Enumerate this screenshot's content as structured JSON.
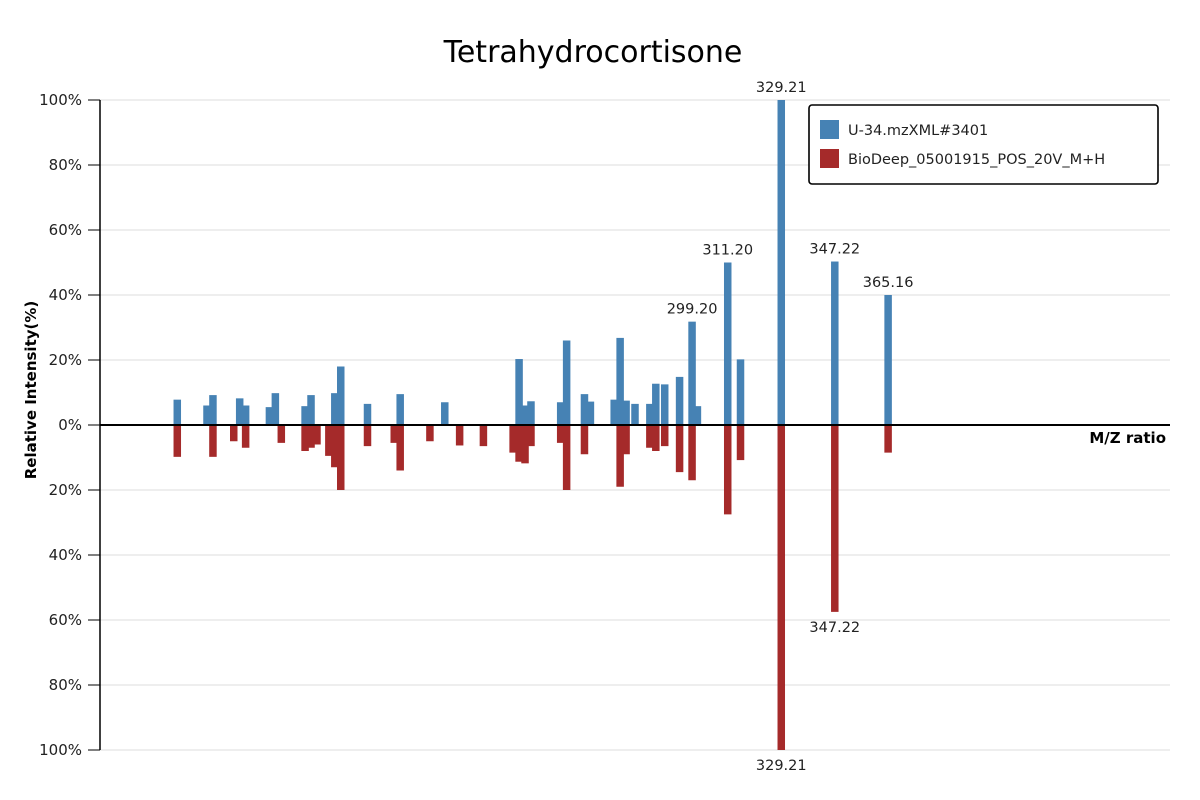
{
  "chart_data": {
    "type": "bar",
    "title": "Tetrahydrocortisone",
    "xlabel": "M/Z ratio",
    "ylabel": "Relative Intensity(%)",
    "y_ticks_top": [
      "100%",
      "80%",
      "60%",
      "40%",
      "20%",
      "0%"
    ],
    "y_ticks_bottom": [
      "20%",
      "40%",
      "60%",
      "80%",
      "100%"
    ],
    "ylim": [
      -100,
      100
    ],
    "xlim": [
      100,
      460
    ],
    "grid": true,
    "legend_position": "top-right",
    "series": [
      {
        "name": "U-34.mzXML#3401",
        "color": "#4682b4",
        "peaks": [
          {
            "mz": 126,
            "value": 7.8
          },
          {
            "mz": 136,
            "value": 6
          },
          {
            "mz": 138,
            "value": 9.2
          },
          {
            "mz": 147,
            "value": 8.2
          },
          {
            "mz": 149,
            "value": 6
          },
          {
            "mz": 157,
            "value": 5.5
          },
          {
            "mz": 159,
            "value": 9.8
          },
          {
            "mz": 169,
            "value": 5.8
          },
          {
            "mz": 171,
            "value": 9.2
          },
          {
            "mz": 179,
            "value": 9.8
          },
          {
            "mz": 181,
            "value": 18
          },
          {
            "mz": 190,
            "value": 6.5
          },
          {
            "mz": 201,
            "value": 9.5
          },
          {
            "mz": 216,
            "value": 7
          },
          {
            "mz": 241,
            "value": 20.3
          },
          {
            "mz": 243,
            "value": 6
          },
          {
            "mz": 245,
            "value": 7.3
          },
          {
            "mz": 255,
            "value": 7
          },
          {
            "mz": 257,
            "value": 26
          },
          {
            "mz": 263,
            "value": 9.5
          },
          {
            "mz": 265,
            "value": 7.2
          },
          {
            "mz": 273,
            "value": 7.8
          },
          {
            "mz": 275,
            "value": 26.8
          },
          {
            "mz": 277,
            "value": 7.5
          },
          {
            "mz": 280,
            "value": 6.5
          },
          {
            "mz": 285,
            "value": 6.5
          },
          {
            "mz": 287,
            "value": 12.7
          },
          {
            "mz": 290,
            "value": 12.5
          },
          {
            "mz": 295,
            "value": 14.8
          },
          {
            "mz": 299.2,
            "value": 31.8,
            "label": "299.20"
          },
          {
            "mz": 301,
            "value": 5.8
          },
          {
            "mz": 311.2,
            "value": 50,
            "label": "311.20"
          },
          {
            "mz": 315.5,
            "value": 20.2
          },
          {
            "mz": 329.21,
            "value": 100,
            "label": "329.21"
          },
          {
            "mz": 347.22,
            "value": 50.3,
            "label": "347.22"
          },
          {
            "mz": 365.16,
            "value": 40,
            "label": "365.16"
          }
        ]
      },
      {
        "name": "BioDeep_05001915_POS_20V_M+H",
        "color": "#a52a2a",
        "peaks": [
          {
            "mz": 126,
            "value": 9.8
          },
          {
            "mz": 138,
            "value": 9.8
          },
          {
            "mz": 145,
            "value": 5
          },
          {
            "mz": 149,
            "value": 7
          },
          {
            "mz": 161,
            "value": 5.5
          },
          {
            "mz": 169,
            "value": 8
          },
          {
            "mz": 171,
            "value": 7
          },
          {
            "mz": 173,
            "value": 6
          },
          {
            "mz": 177,
            "value": 9.5
          },
          {
            "mz": 179,
            "value": 13
          },
          {
            "mz": 181,
            "value": 20
          },
          {
            "mz": 190,
            "value": 6.5
          },
          {
            "mz": 199,
            "value": 5.5
          },
          {
            "mz": 201,
            "value": 14
          },
          {
            "mz": 211,
            "value": 5
          },
          {
            "mz": 221,
            "value": 6.3
          },
          {
            "mz": 229,
            "value": 6.5
          },
          {
            "mz": 239,
            "value": 8.5
          },
          {
            "mz": 241,
            "value": 11.3
          },
          {
            "mz": 243,
            "value": 11.8
          },
          {
            "mz": 245,
            "value": 6.5
          },
          {
            "mz": 255,
            "value": 5.5
          },
          {
            "mz": 257,
            "value": 20
          },
          {
            "mz": 263,
            "value": 9
          },
          {
            "mz": 275,
            "value": 19
          },
          {
            "mz": 277,
            "value": 9
          },
          {
            "mz": 285,
            "value": 7
          },
          {
            "mz": 287,
            "value": 8
          },
          {
            "mz": 290,
            "value": 6.5
          },
          {
            "mz": 295,
            "value": 14.5
          },
          {
            "mz": 299.2,
            "value": 17
          },
          {
            "mz": 311.2,
            "value": 27.5
          },
          {
            "mz": 315.5,
            "value": 10.8
          },
          {
            "mz": 329.21,
            "value": 100,
            "label": "329.21"
          },
          {
            "mz": 347.22,
            "value": 57.5,
            "label": "347.22"
          },
          {
            "mz": 365.16,
            "value": 8.5
          }
        ]
      }
    ]
  }
}
